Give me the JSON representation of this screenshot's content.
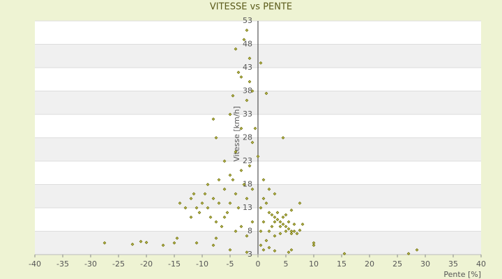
{
  "chart_data": {
    "type": "scatter",
    "title": "VITESSE vs PENTE",
    "x_label": "Pente [%]",
    "y_label": "Vitesse [km/h]",
    "xlim": [
      -40,
      40
    ],
    "ylim": [
      3,
      53
    ],
    "xticks": [
      -40,
      -35,
      -30,
      -25,
      -20,
      -15,
      -10,
      -5,
      0,
      5,
      10,
      15,
      20,
      25,
      30,
      35,
      40
    ],
    "yticks": [
      3,
      8,
      13,
      18,
      23,
      28,
      33,
      38,
      43,
      48,
      53
    ],
    "grid": true,
    "band_colors": [
      "#ffffff",
      "#f0f0f0"
    ],
    "color": "#6b6b00",
    "series": [
      {
        "name": "Vitesse",
        "x": [
          -27.5,
          -22.5,
          -21,
          -20,
          -17,
          -15,
          -14.5,
          -11,
          -8,
          -7.5,
          -5,
          -2,
          1,
          3,
          5.5,
          10,
          15.5,
          27,
          28.5,
          -14,
          -13,
          -12,
          -11,
          -10,
          -9.5,
          -9,
          -8,
          -7,
          -6,
          -5.5,
          -5,
          -4.5,
          -4,
          -3.5,
          -3,
          -2.5,
          -2,
          -1.5,
          -1,
          -10.5,
          -8.5,
          -7.5,
          -6.5,
          -6,
          -4,
          -3,
          -2,
          -1,
          -12,
          -11.5,
          -9,
          -7,
          -5,
          -6,
          -4,
          -7.5,
          -8,
          -5,
          -3.5,
          -4,
          -2.5,
          -2,
          -1.5,
          -1,
          -2,
          -3,
          -1,
          0,
          -0.5,
          -4.5,
          -3,
          -1.5,
          0.5,
          1,
          1.5,
          2,
          2.5,
          3,
          3.5,
          4,
          4.5,
          5,
          5.5,
          6,
          6.5,
          7,
          7.5,
          3,
          4,
          5,
          6,
          2.5,
          3.5,
          4.5,
          5.5,
          6.5,
          2,
          1.5,
          3,
          4,
          5,
          6,
          7.5,
          4.5,
          1.5,
          1,
          2,
          3,
          0.5,
          1,
          0.5,
          8,
          10,
          6,
          2,
          0.5
        ],
        "values": [
          5.5,
          5.2,
          5.8,
          5.6,
          5,
          5.5,
          6.5,
          5.5,
          5,
          6.5,
          4,
          3.5,
          4,
          3.8,
          3.5,
          5,
          3.2,
          3.2,
          4,
          14,
          13,
          15,
          13,
          14,
          16,
          13,
          15,
          14,
          17,
          12,
          14,
          19,
          16,
          13,
          21,
          18,
          15,
          22,
          17,
          12,
          11,
          10,
          9,
          11,
          8,
          9,
          7,
          10,
          11,
          16,
          18,
          19,
          20,
          23,
          25,
          28,
          32,
          33,
          42,
          47,
          49,
          51,
          45,
          38,
          36,
          30,
          27,
          24,
          30,
          37,
          41,
          40,
          44,
          15,
          14,
          12,
          11.5,
          11,
          10.5,
          10,
          9.5,
          9,
          8.5,
          8,
          8,
          7.5,
          8.2,
          10,
          9,
          8,
          7.5,
          9,
          12,
          11,
          10,
          9.5,
          8,
          6,
          7,
          7.5,
          11.5,
          12.5,
          14,
          28,
          37.5,
          19,
          17,
          16,
          13,
          10,
          8,
          9.5,
          5.5,
          4,
          4.5,
          5
        ]
      }
    ]
  }
}
